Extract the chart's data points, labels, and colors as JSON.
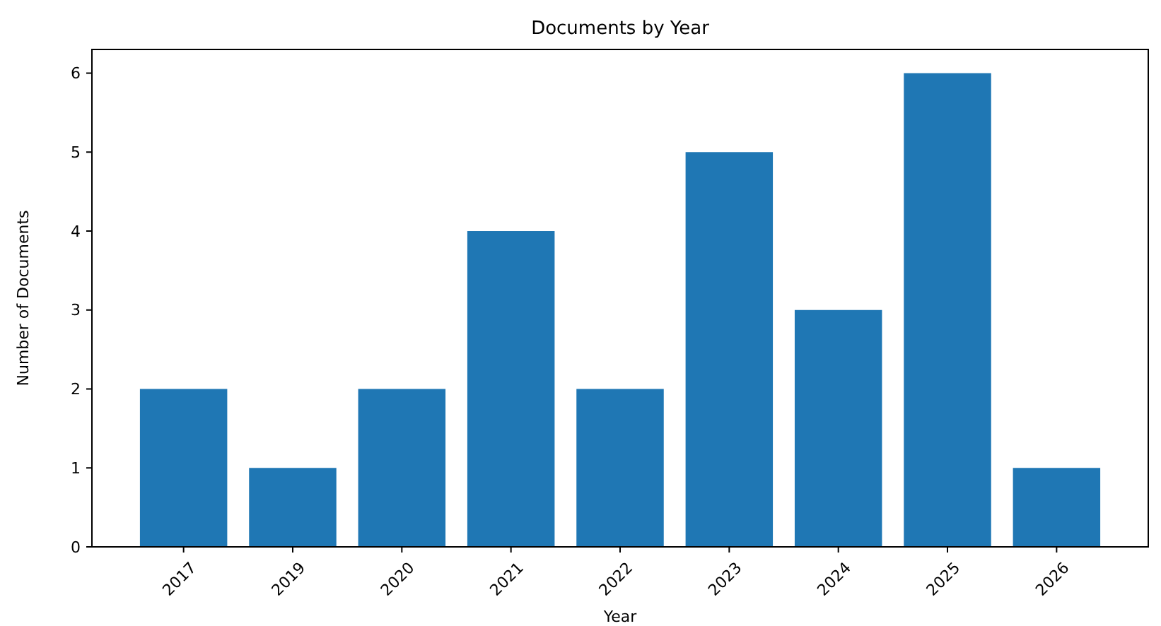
{
  "chart_data": {
    "type": "bar",
    "title": "Documents by Year",
    "xlabel": "Year",
    "ylabel": "Number of Documents",
    "categories": [
      "2017",
      "2019",
      "2020",
      "2021",
      "2022",
      "2023",
      "2024",
      "2025",
      "2026"
    ],
    "values": [
      2,
      1,
      2,
      4,
      2,
      5,
      3,
      6,
      1
    ],
    "color": "#1f77b4",
    "ylim": [
      0,
      6.3
    ],
    "yticks": [
      0,
      1,
      2,
      3,
      4,
      5,
      6
    ],
    "grid": false
  }
}
